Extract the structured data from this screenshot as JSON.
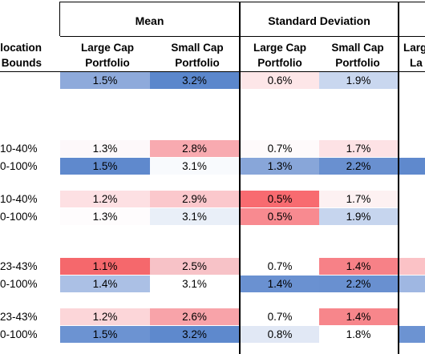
{
  "header": {
    "groups": [
      {
        "label": "Mean"
      },
      {
        "label": "Standard Deviation"
      }
    ],
    "label_col": [
      "location",
      "Bounds"
    ],
    "columns": [
      [
        "Large Cap",
        "Portfolio"
      ],
      [
        "Small Cap",
        "Portfolio"
      ],
      [
        "Large Cap",
        "Portfolio"
      ],
      [
        "Small Cap",
        "Portfolio"
      ],
      [
        "Larg",
        "La"
      ]
    ]
  },
  "rows": [
    {
      "label": "",
      "cells": [
        {
          "v": "1.5%",
          "bg": "#8eaadb"
        },
        {
          "v": "3.2%",
          "bg": "#5b87cc"
        },
        {
          "v": "0.6%",
          "bg": "#fde6e8"
        },
        {
          "v": "1.9%",
          "bg": "#c9d7ef"
        },
        {
          "v": "",
          "bg": "#ffffff"
        }
      ]
    },
    {
      "label": "10-40%",
      "cells": [
        {
          "v": "1.3%",
          "bg": "#fdf8fa"
        },
        {
          "v": "2.8%",
          "bg": "#f8aab0"
        },
        {
          "v": "0.7%",
          "bg": "#fefafb"
        },
        {
          "v": "1.7%",
          "bg": "#fde2e5"
        },
        {
          "v": "",
          "bg": "#ffffff"
        }
      ]
    },
    {
      "label": "0-100%",
      "cells": [
        {
          "v": "1.5%",
          "bg": "#5f89cd"
        },
        {
          "v": "3.1%",
          "bg": "#f8fafd"
        },
        {
          "v": "1.3%",
          "bg": "#88a6d9"
        },
        {
          "v": "2.2%",
          "bg": "#6990d0"
        },
        {
          "v": "",
          "bg": "#5f89cd"
        }
      ]
    },
    {
      "label": "10-40%",
      "cells": [
        {
          "v": "1.2%",
          "bg": "#fde0e3"
        },
        {
          "v": "2.9%",
          "bg": "#fbc8cc"
        },
        {
          "v": "0.5%",
          "bg": "#f86b70"
        },
        {
          "v": "1.7%",
          "bg": "#fdf1f2"
        },
        {
          "v": "",
          "bg": "#ffffff"
        }
      ]
    },
    {
      "label": "0-100%",
      "cells": [
        {
          "v": "1.3%",
          "bg": "#fefcfd"
        },
        {
          "v": "3.1%",
          "bg": "#e9eff8"
        },
        {
          "v": "0.5%",
          "bg": "#f88a90"
        },
        {
          "v": "1.9%",
          "bg": "#c6d5ee"
        },
        {
          "v": "",
          "bg": "#ffffff"
        }
      ]
    },
    {
      "label": "23-43%",
      "cells": [
        {
          "v": "1.1%",
          "bg": "#f5686c"
        },
        {
          "v": "2.5%",
          "bg": "#f7c2c7"
        },
        {
          "v": "0.7%",
          "bg": "#ffffff"
        },
        {
          "v": "1.4%",
          "bg": "#f78187"
        },
        {
          "v": "",
          "bg": "#fbc2c6"
        }
      ]
    },
    {
      "label": "0-100%",
      "cells": [
        {
          "v": "1.4%",
          "bg": "#abc0e5"
        },
        {
          "v": "3.1%",
          "bg": "#ffffff"
        },
        {
          "v": "1.4%",
          "bg": "#6a91d1"
        },
        {
          "v": "2.2%",
          "bg": "#6990d0"
        },
        {
          "v": "",
          "bg": "#9fb7e2"
        }
      ]
    },
    {
      "label": "23-43%",
      "cells": [
        {
          "v": "1.2%",
          "bg": "#fcd6d9"
        },
        {
          "v": "2.6%",
          "bg": "#f8a3a9"
        },
        {
          "v": "0.7%",
          "bg": "#ffffff"
        },
        {
          "v": "1.4%",
          "bg": "#f7868b"
        },
        {
          "v": "",
          "bg": "#ffffff"
        }
      ]
    },
    {
      "label": "0-100%",
      "cells": [
        {
          "v": "1.5%",
          "bg": "#6c93d2"
        },
        {
          "v": "3.2%",
          "bg": "#5e89cd"
        },
        {
          "v": "0.8%",
          "bg": "#e1e8f5"
        },
        {
          "v": "1.8%",
          "bg": "#ffffff"
        },
        {
          "v": "",
          "bg": "#6c93d2"
        }
      ]
    }
  ]
}
